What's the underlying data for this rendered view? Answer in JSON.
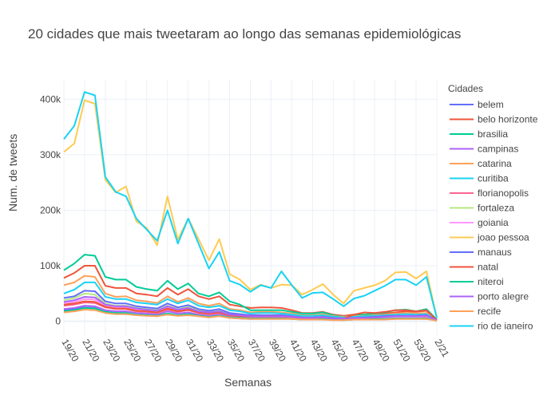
{
  "chart_data": {
    "type": "line",
    "title": "20 cidades que mais tweetaram ao longo das semanas epidemiológicas",
    "xlabel": "Semanas",
    "ylabel": "Num. de tweets",
    "legend_title": "Cidades",
    "legend_position": "right",
    "grid": true,
    "ylim": [
      -25000,
      435000
    ],
    "y_ticks": [
      0,
      100000,
      200000,
      300000,
      400000
    ],
    "y_tick_labels": [
      "0",
      "100k",
      "200k",
      "300k",
      "400k"
    ],
    "x_tick_labels": [
      "19/20",
      "21/20",
      "23/20",
      "25/20",
      "27/20",
      "29/20",
      "31/20",
      "33/20",
      "35/20",
      "37/20",
      "39/20",
      "41/20",
      "43/20",
      "45/20",
      "47/20",
      "49/20",
      "51/20",
      "53/20",
      "2/21"
    ],
    "x": [
      "19/20",
      "20/20",
      "21/20",
      "22/20",
      "23/20",
      "24/20",
      "25/20",
      "26/20",
      "27/20",
      "28/20",
      "29/20",
      "30/20",
      "31/20",
      "32/20",
      "33/20",
      "34/20",
      "35/20",
      "36/20",
      "37/20",
      "38/20",
      "39/20",
      "40/20",
      "41/20",
      "42/20",
      "43/20",
      "44/20",
      "45/20",
      "46/20",
      "47/20",
      "48/20",
      "49/20",
      "50/20",
      "51/20",
      "52/20",
      "53/20",
      "1/21",
      "2/21"
    ],
    "series": [
      {
        "name": "belem",
        "color": "#636efa",
        "values": [
          20000,
          22000,
          25000,
          24000,
          17000,
          15000,
          15000,
          12000,
          11000,
          9000,
          14000,
          10000,
          12000,
          10000,
          8000,
          10000,
          6000,
          5000,
          4000,
          5000,
          5000,
          5000,
          5000,
          4000,
          4000,
          5000,
          3000,
          4000,
          4000,
          5000,
          5000,
          5000,
          6000,
          6000,
          6000,
          7000,
          1000
        ]
      },
      {
        "name": "belo horizonte",
        "color": "#EF553B",
        "values": [
          78000,
          87000,
          100000,
          100000,
          64000,
          60000,
          60000,
          50000,
          48000,
          45000,
          60000,
          48000,
          58000,
          45000,
          40000,
          45000,
          30000,
          27000,
          24000,
          25000,
          25000,
          24000,
          20000,
          15000,
          15000,
          17000,
          12000,
          10000,
          12000,
          12000,
          14000,
          14000,
          16000,
          18000,
          17000,
          19000,
          3000
        ]
      },
      {
        "name": "brasilia",
        "color": "#00cc96",
        "values": [
          92000,
          104000,
          120000,
          118000,
          80000,
          75000,
          75000,
          62000,
          58000,
          55000,
          73000,
          58000,
          68000,
          50000,
          45000,
          52000,
          36000,
          30000,
          20000,
          20000,
          20000,
          20000,
          17000,
          14000,
          14000,
          16000,
          11000,
          8000,
          10000,
          12000,
          14000,
          16000,
          20000,
          21000,
          18000,
          22000,
          3000
        ]
      },
      {
        "name": "campinas",
        "color": "#ab63fa",
        "values": [
          22000,
          24000,
          28000,
          27000,
          20000,
          18000,
          18000,
          15000,
          14000,
          12000,
          18000,
          14000,
          16000,
          12000,
          10000,
          12000,
          8000,
          7000,
          6000,
          6000,
          6000,
          6000,
          5000,
          4000,
          4000,
          5000,
          3000,
          3000,
          4000,
          4000,
          5000,
          5000,
          6000,
          6000,
          6000,
          6000,
          1000
        ]
      },
      {
        "name": "catarina",
        "color": "#FFA15A",
        "values": [
          65000,
          70000,
          82000,
          80000,
          50000,
          44000,
          45000,
          38000,
          36000,
          33000,
          45000,
          35000,
          42000,
          32000,
          28000,
          32000,
          22000,
          20000,
          16000,
          17000,
          17000,
          16000,
          14000,
          11000,
          11000,
          13000,
          9000,
          8000,
          9000,
          10000,
          11000,
          12000,
          14000,
          15000,
          14000,
          15000,
          2000
        ]
      },
      {
        "name": "curitiba",
        "color": "#19d3f3",
        "values": [
          50000,
          57000,
          70000,
          70000,
          44000,
          40000,
          40000,
          34000,
          32000,
          30000,
          40000,
          32000,
          38000,
          28000,
          25000,
          28000,
          20000,
          18000,
          14000,
          15000,
          15000,
          14000,
          12000,
          10000,
          10000,
          11000,
          8000,
          7000,
          8000,
          9000,
          10000,
          11000,
          12000,
          13000,
          12000,
          13000,
          2000
        ]
      },
      {
        "name": "florianopolis",
        "color": "#FF6692",
        "values": [
          28000,
          30000,
          34000,
          33000,
          25000,
          22000,
          22000,
          18000,
          17000,
          15000,
          21000,
          17000,
          20000,
          15000,
          13000,
          15000,
          10000,
          9000,
          8000,
          8000,
          8000,
          8000,
          7000,
          5000,
          5000,
          6000,
          4000,
          4000,
          5000,
          5000,
          6000,
          6000,
          7000,
          7000,
          7000,
          8000,
          1000
        ]
      },
      {
        "name": "fortaleza",
        "color": "#B6E880",
        "values": [
          38000,
          42000,
          50000,
          48000,
          32000,
          28000,
          28000,
          24000,
          22000,
          20000,
          28000,
          22000,
          26000,
          20000,
          17000,
          20000,
          13000,
          12000,
          10000,
          10000,
          10000,
          10000,
          8000,
          7000,
          7000,
          8000,
          5000,
          5000,
          6000,
          7000,
          8000,
          9000,
          10000,
          10000,
          10000,
          11000,
          2000
        ]
      },
      {
        "name": "goiania",
        "color": "#FF97FF",
        "values": [
          32000,
          35000,
          40000,
          39000,
          28000,
          25000,
          25000,
          21000,
          20000,
          18000,
          25000,
          20000,
          23000,
          17000,
          15000,
          17000,
          12000,
          11000,
          9000,
          9000,
          9000,
          9000,
          8000,
          6000,
          6000,
          7000,
          5000,
          4000,
          5000,
          6000,
          7000,
          7000,
          8000,
          8000,
          8000,
          9000,
          1000
        ]
      },
      {
        "name": "joao pessoa",
        "color": "#FECB52",
        "values": [
          305000,
          320000,
          398000,
          392000,
          255000,
          232000,
          243000,
          180000,
          168000,
          137000,
          225000,
          147000,
          185000,
          148000,
          110000,
          148000,
          85000,
          75000,
          57000,
          66000,
          60000,
          66000,
          65000,
          48000,
          57000,
          67000,
          48000,
          32000,
          55000,
          60000,
          65000,
          73000,
          88000,
          89000,
          77000,
          90000,
          6000
        ]
      },
      {
        "name": "manaus",
        "color": "#636efa",
        "values": [
          42000,
          45000,
          55000,
          54000,
          36000,
          32000,
          32000,
          27000,
          25000,
          23000,
          32000,
          25000,
          29000,
          22000,
          19000,
          22000,
          15000,
          13000,
          11000,
          11000,
          11000,
          11000,
          9000,
          7000,
          7000,
          8000,
          6000,
          5000,
          6000,
          7000,
          8000,
          9000,
          10000,
          10000,
          10000,
          11000,
          2000
        ]
      },
      {
        "name": "natal",
        "color": "#EF553B",
        "values": [
          30000,
          32000,
          36000,
          35000,
          26000,
          23000,
          23000,
          19000,
          18000,
          16000,
          23000,
          18000,
          21000,
          16000,
          14000,
          16000,
          11000,
          10000,
          9000,
          9000,
          9000,
          9000,
          8000,
          6000,
          6000,
          7000,
          5000,
          5000,
          12000,
          16000,
          15000,
          17000,
          20000,
          20000,
          18000,
          20000,
          2000
        ]
      },
      {
        "name": "niteroi",
        "color": "#00cc96",
        "values": [
          18000,
          20000,
          24000,
          23000,
          17000,
          15000,
          15000,
          12000,
          11000,
          10000,
          14000,
          11000,
          13000,
          10000,
          8000,
          10000,
          7000,
          6000,
          5000,
          5000,
          5000,
          5000,
          4000,
          3000,
          3000,
          4000,
          3000,
          2000,
          3000,
          3000,
          4000,
          4000,
          5000,
          5000,
          5000,
          5000,
          1000
        ]
      },
      {
        "name": "porto alegre",
        "color": "#ab63fa",
        "values": [
          35000,
          38000,
          44000,
          43000,
          30000,
          27000,
          27000,
          23000,
          21000,
          19000,
          27000,
          21000,
          24000,
          18000,
          16000,
          18000,
          12000,
          11000,
          9000,
          9000,
          9000,
          9000,
          8000,
          6000,
          6000,
          7000,
          5000,
          5000,
          6000,
          6000,
          7000,
          8000,
          9000,
          9000,
          9000,
          10000,
          2000
        ]
      },
      {
        "name": "recife",
        "color": "#FFA15A",
        "values": [
          16000,
          18000,
          21000,
          20000,
          15000,
          13000,
          13000,
          11000,
          10000,
          9000,
          12000,
          10000,
          11000,
          9000,
          7000,
          9000,
          6000,
          5000,
          4000,
          4000,
          4000,
          4000,
          4000,
          3000,
          3000,
          3000,
          2000,
          2000,
          3000,
          3000,
          3000,
          3000,
          4000,
          4000,
          4000,
          4000,
          1000
        ]
      },
      {
        "name": "rio de ianeiro",
        "color": "#19d3f3",
        "values": [
          328000,
          352000,
          413000,
          407000,
          260000,
          233000,
          225000,
          185000,
          165000,
          145000,
          200000,
          140000,
          185000,
          140000,
          95000,
          125000,
          73000,
          66000,
          53000,
          65000,
          60000,
          90000,
          65000,
          42000,
          51000,
          52000,
          40000,
          27000,
          41000,
          46000,
          55000,
          64000,
          75000,
          75000,
          65000,
          80000,
          6000
        ]
      }
    ]
  }
}
